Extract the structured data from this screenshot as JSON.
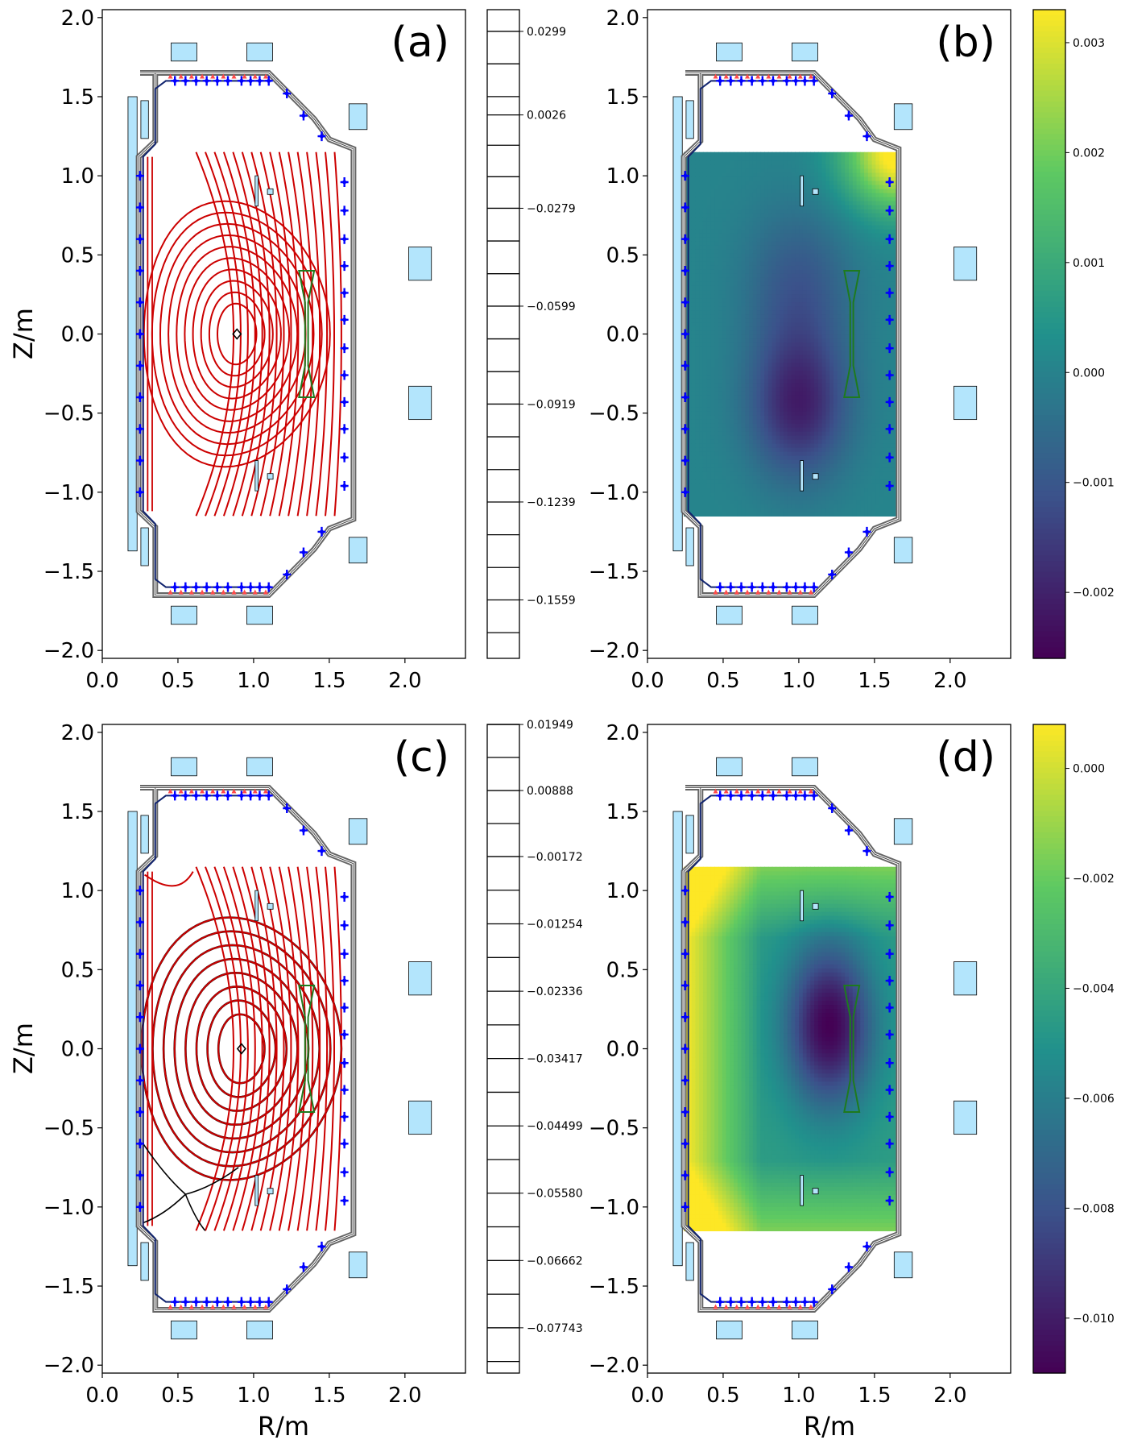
{
  "figure": {
    "type": "tokamak-equilibrium-figure",
    "colors": {
      "coil": "#b3e5fc",
      "flux_red": "#cc0000",
      "flux_black": "#000000",
      "vessel": "#666666",
      "probe_blue": "#0000ff",
      "limiter_green": "#1e7a1e",
      "viridis": [
        "#440154",
        "#3b528b",
        "#21918c",
        "#5ec962",
        "#fde725"
      ]
    }
  },
  "chart_data": [
    {
      "panel": "(a)",
      "type": "contour",
      "xlabel": "",
      "ylabel": "Z/m",
      "xlim": [
        0.0,
        2.4
      ],
      "ylim": [
        -2.05,
        2.05
      ],
      "xticks": [
        0.0,
        0.5,
        1.0,
        1.5,
        2.0
      ],
      "xtick_labels": [
        "0.0",
        "0.5",
        "1.0",
        "1.5",
        "2.0"
      ],
      "yticks": [
        2.0,
        1.5,
        1.0,
        0.5,
        0.0,
        -0.5,
        -1.0,
        -1.5,
        -2.0
      ],
      "ytick_labels": [
        "2.0",
        "1.5",
        "1.0",
        "0.5",
        "0.0",
        "−0.5",
        "−1.0",
        "−1.5",
        "−2.0"
      ],
      "magnetic_axis": [
        0.89,
        0.0
      ],
      "x_points": [],
      "colorbar": {
        "kind": "contour-levels",
        "range": [
          -0.175,
          0.037
        ],
        "tick_values": [
          0.0299,
          0.0026,
          -0.0279,
          -0.0599,
          -0.0919,
          -0.1239,
          -0.1559
        ],
        "tick_labels": [
          "0.0299",
          "0.0026",
          "−0.0279",
          "−0.0599",
          "−0.0919",
          "−0.1239",
          "−0.1559"
        ],
        "line_values": [
          0.0299,
          0.0193,
          0.0086,
          0.0026,
          -0.0073,
          -0.0176,
          -0.0279,
          -0.0386,
          -0.0493,
          -0.0599,
          -0.0706,
          -0.0813,
          -0.0919,
          -0.1026,
          -0.1133,
          -0.1239,
          -0.1346,
          -0.1453,
          -0.1559,
          -0.1666
        ]
      }
    },
    {
      "panel": "(b)",
      "type": "heatmap",
      "colormap": "viridis",
      "xlabel": "",
      "ylabel": "",
      "xlim": [
        0.0,
        2.4
      ],
      "ylim": [
        -2.05,
        2.05
      ],
      "xticks": [
        0.0,
        0.5,
        1.0,
        1.5,
        2.0
      ],
      "xtick_labels": [
        "0.0",
        "0.5",
        "1.0",
        "1.5",
        "2.0"
      ],
      "yticks": [
        2.0,
        1.5,
        1.0,
        0.5,
        0.0,
        -0.5,
        -1.0,
        -1.5,
        -2.0
      ],
      "ytick_labels": [
        "2.0",
        "1.5",
        "1.0",
        "0.5",
        "0.0",
        "−0.5",
        "−1.0",
        "−1.5",
        "−2.0"
      ],
      "field_extent": {
        "r": [
          0.24,
          1.66
        ],
        "z": [
          -1.15,
          1.15
        ]
      },
      "colorbar": {
        "kind": "continuous",
        "range": [
          -0.0026,
          0.0033
        ],
        "tick_values": [
          0.003,
          0.002,
          0.001,
          0.0,
          -0.001,
          -0.002
        ],
        "tick_labels": [
          "0.003",
          "0.002",
          "0.001",
          "0.000",
          "−0.001",
          "−0.002"
        ]
      }
    },
    {
      "panel": "(c)",
      "type": "contour",
      "xlabel": "R/m",
      "ylabel": "Z/m",
      "xlim": [
        0.0,
        2.4
      ],
      "ylim": [
        -2.05,
        2.05
      ],
      "xticks": [
        0.0,
        0.5,
        1.0,
        1.5,
        2.0
      ],
      "xtick_labels": [
        "0.0",
        "0.5",
        "1.0",
        "1.5",
        "2.0"
      ],
      "yticks": [
        2.0,
        1.5,
        1.0,
        0.5,
        0.0,
        -0.5,
        -1.0,
        -1.5,
        -2.0
      ],
      "ytick_labels": [
        "2.0",
        "1.5",
        "1.0",
        "0.5",
        "0.0",
        "−0.5",
        "−1.0",
        "−1.5",
        "−2.0"
      ],
      "magnetic_axis": [
        0.92,
        0.0
      ],
      "x_points": [
        [
          0.55,
          -0.92
        ]
      ],
      "colorbar": {
        "kind": "contour-levels",
        "range": [
          -0.0847,
          0.0195
        ],
        "tick_values": [
          0.01949,
          0.00888,
          -0.00172,
          -0.01254,
          -0.02336,
          -0.03417,
          -0.04499,
          -0.0558,
          -0.06662,
          -0.07743
        ],
        "tick_labels": [
          "0.01949",
          "0.00888",
          "−0.00172",
          "−0.01254",
          "−0.02336",
          "−0.03417",
          "−0.04499",
          "−0.05580",
          "−0.06662",
          "−0.07743"
        ],
        "line_values": [
          0.01949,
          0.01419,
          0.00888,
          0.00358,
          -0.00172,
          -0.00713,
          -0.01254,
          -0.01795,
          -0.02336,
          -0.02877,
          -0.03417,
          -0.03958,
          -0.04499,
          -0.0504,
          -0.0558,
          -0.06121,
          -0.06662,
          -0.07203,
          -0.07743,
          -0.08284
        ]
      }
    },
    {
      "panel": "(d)",
      "type": "heatmap",
      "colormap": "viridis",
      "xlabel": "R/m",
      "ylabel": "",
      "xlim": [
        0.0,
        2.4
      ],
      "ylim": [
        -2.05,
        2.05
      ],
      "xticks": [
        0.0,
        0.5,
        1.0,
        1.5,
        2.0
      ],
      "xtick_labels": [
        "0.0",
        "0.5",
        "1.0",
        "1.5",
        "2.0"
      ],
      "yticks": [
        2.0,
        1.5,
        1.0,
        0.5,
        0.0,
        -0.5,
        -1.0,
        -1.5,
        -2.0
      ],
      "ytick_labels": [
        "2.0",
        "1.5",
        "1.0",
        "0.5",
        "0.0",
        "−0.5",
        "−1.0",
        "−1.5",
        "−2.0"
      ],
      "field_extent": {
        "r": [
          0.24,
          1.66
        ],
        "z": [
          -1.15,
          1.15
        ]
      },
      "colorbar": {
        "kind": "continuous",
        "range": [
          -0.011,
          0.0008
        ],
        "tick_values": [
          0.0,
          -0.002,
          -0.004,
          -0.006,
          -0.008,
          -0.01
        ],
        "tick_labels": [
          "0.000",
          "−0.002",
          "−0.004",
          "−0.006",
          "−0.008",
          "−0.010"
        ]
      }
    }
  ],
  "machine": {
    "pf_coils": [
      {
        "r": 0.54,
        "z": 1.78,
        "w": 0.17,
        "h": 0.12
      },
      {
        "r": 1.04,
        "z": 1.78,
        "w": 0.17,
        "h": 0.12
      },
      {
        "r": 1.69,
        "z": 1.37,
        "w": 0.12,
        "h": 0.17
      },
      {
        "r": 2.1,
        "z": 0.44,
        "w": 0.15,
        "h": 0.22
      },
      {
        "r": 2.1,
        "z": -0.44,
        "w": 0.15,
        "h": 0.22
      },
      {
        "r": 1.69,
        "z": -1.37,
        "w": 0.12,
        "h": 0.17
      },
      {
        "r": 0.54,
        "z": -1.78,
        "w": 0.17,
        "h": 0.12
      },
      {
        "r": 1.04,
        "z": -1.78,
        "w": 0.17,
        "h": 0.12
      }
    ],
    "solenoid": {
      "r": 0.2,
      "z": 0.0,
      "w": 0.06,
      "h": 3.0
    },
    "shaping_coils": [
      {
        "r": 0.28,
        "z": 1.35,
        "w": 0.05,
        "h": 0.25
      },
      {
        "r": 0.28,
        "z": -1.35,
        "w": 0.05,
        "h": 0.25
      }
    ],
    "vessel_outline": [
      [
        0.25,
        1.65
      ],
      [
        1.1,
        1.65
      ],
      [
        1.4,
        1.36
      ],
      [
        1.5,
        1.23
      ],
      [
        1.66,
        1.17
      ],
      [
        1.66,
        -1.17
      ],
      [
        1.5,
        -1.23
      ],
      [
        1.4,
        -1.36
      ],
      [
        1.1,
        -1.65
      ],
      [
        0.35,
        -1.65
      ],
      [
        0.35,
        -1.22
      ],
      [
        0.24,
        -1.12
      ],
      [
        0.24,
        1.12
      ],
      [
        0.35,
        1.22
      ],
      [
        0.35,
        1.65
      ]
    ],
    "limiter": [
      [
        1.3,
        0.4
      ],
      [
        1.4,
        0.4
      ],
      [
        1.36,
        0.2
      ],
      [
        1.36,
        -0.2
      ],
      [
        1.4,
        -0.4
      ],
      [
        1.3,
        -0.4
      ],
      [
        1.34,
        -0.2
      ],
      [
        1.34,
        0.2
      ]
    ],
    "probe_points": [
      [
        0.25,
        1.0
      ],
      [
        0.25,
        0.8
      ],
      [
        0.25,
        0.6
      ],
      [
        0.25,
        0.4
      ],
      [
        0.25,
        0.2
      ],
      [
        0.25,
        0.0
      ],
      [
        0.25,
        -0.2
      ],
      [
        0.25,
        -0.4
      ],
      [
        0.25,
        -0.6
      ],
      [
        0.25,
        -0.8
      ],
      [
        0.25,
        -1.0
      ],
      [
        1.6,
        0.96
      ],
      [
        1.6,
        0.78
      ],
      [
        1.6,
        0.6
      ],
      [
        1.6,
        0.43
      ],
      [
        1.6,
        0.26
      ],
      [
        1.6,
        0.09
      ],
      [
        1.6,
        -0.09
      ],
      [
        1.6,
        -0.26
      ],
      [
        1.6,
        -0.43
      ],
      [
        1.6,
        -0.6
      ],
      [
        1.6,
        -0.78
      ],
      [
        1.6,
        -0.96
      ],
      [
        0.48,
        1.6
      ],
      [
        0.55,
        1.6
      ],
      [
        0.62,
        1.6
      ],
      [
        0.69,
        1.6
      ],
      [
        0.76,
        1.6
      ],
      [
        0.83,
        1.6
      ],
      [
        0.92,
        1.6
      ],
      [
        0.98,
        1.6
      ],
      [
        1.04,
        1.6
      ],
      [
        1.1,
        1.6
      ],
      [
        0.48,
        -1.6
      ],
      [
        0.55,
        -1.6
      ],
      [
        0.62,
        -1.6
      ],
      [
        0.69,
        -1.6
      ],
      [
        0.76,
        -1.6
      ],
      [
        0.83,
        -1.6
      ],
      [
        0.92,
        -1.6
      ],
      [
        0.98,
        -1.6
      ],
      [
        1.04,
        -1.6
      ],
      [
        1.1,
        -1.6
      ],
      [
        1.22,
        1.52
      ],
      [
        1.33,
        1.38
      ],
      [
        1.45,
        1.25
      ],
      [
        1.22,
        -1.52
      ],
      [
        1.33,
        -1.38
      ],
      [
        1.45,
        -1.25
      ]
    ],
    "inner_probes": [
      {
        "r": 1.02,
        "z": 0.9,
        "w": 0.02,
        "h": 0.2
      },
      {
        "r": 1.02,
        "z": -0.9,
        "w": 0.02,
        "h": 0.2
      }
    ],
    "inner_squares": [
      {
        "r": 1.11,
        "z": 0.9
      },
      {
        "r": 1.11,
        "z": -0.9
      }
    ]
  }
}
